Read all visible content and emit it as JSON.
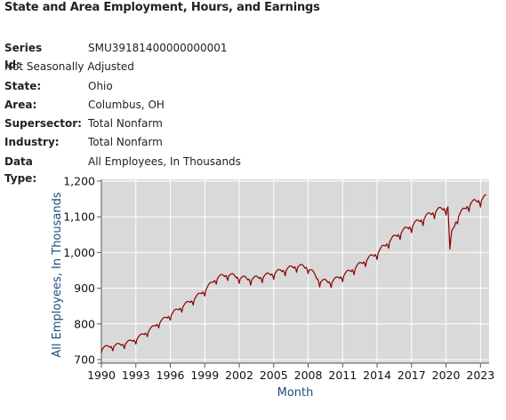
{
  "header": {
    "title": "State and Area Employment, Hours, and Earnings"
  },
  "meta": {
    "series_id_label": "Series Id:",
    "series_id": "SMU39181400000000001",
    "seasonal": "Not Seasonally Adjusted",
    "state_label": "State:",
    "state": "Ohio",
    "area_label": "Area:",
    "area": "Columbus, OH",
    "supersector_label": "Supersector:",
    "supersector": "Total Nonfarm",
    "industry_label": "Industry:",
    "industry": "Total Nonfarm",
    "datatype_label": "Data Type:",
    "datatype": "All Employees, In Thousands"
  },
  "colors": {
    "line": "#8b0000",
    "plot_bg": "#d9d9d9",
    "axis_title": "#1f4e79"
  },
  "chart_data": {
    "type": "line",
    "title": "",
    "xlabel": "Month",
    "ylabel": "All Employees, In Thousands",
    "xlim": [
      1990,
      2023.75
    ],
    "ylim": [
      690,
      1205
    ],
    "grid": true,
    "x_ticks": [
      1990,
      1993,
      1996,
      1999,
      2002,
      2005,
      2008,
      2011,
      2014,
      2017,
      2020,
      2023
    ],
    "x_tick_labels": [
      "1990",
      "1993",
      "1996",
      "1999",
      "2002",
      "2005",
      "2008",
      "2011",
      "2014",
      "2017",
      "2020",
      "2023"
    ],
    "y_ticks": [
      700,
      800,
      900,
      1000,
      1100,
      1200
    ],
    "y_tick_labels": [
      "700",
      "800",
      "900",
      "1,000",
      "1,100",
      "1,200"
    ],
    "series": [
      {
        "frequency": "monthly, Jan 1990 - Jun 2023",
        "x": [
          1990,
          1991,
          1992,
          1993,
          1994,
          1995,
          1996,
          1997,
          1998,
          1999,
          2000,
          2001,
          2002,
          2003,
          2004,
          2005,
          2006,
          2007,
          2008,
          2009,
          2010,
          2011,
          2012,
          2013,
          2014,
          2015,
          2016,
          2017,
          2018,
          2019,
          2020,
          2020.17,
          2020.33,
          2020.5,
          2021,
          2022,
          2023,
          2023.5
        ],
        "values": [
          732,
          738,
          744,
          757,
          778,
          803,
          825,
          848,
          868,
          894,
          928,
          938,
          930,
          925,
          932,
          942,
          952,
          962,
          958,
          920,
          918,
          935,
          955,
          978,
          998,
          1030,
          1055,
          1075,
          1095,
          1115,
          1125,
          1128,
          1003,
          1055,
          1100,
          1135,
          1148,
          1155
        ]
      }
    ]
  }
}
